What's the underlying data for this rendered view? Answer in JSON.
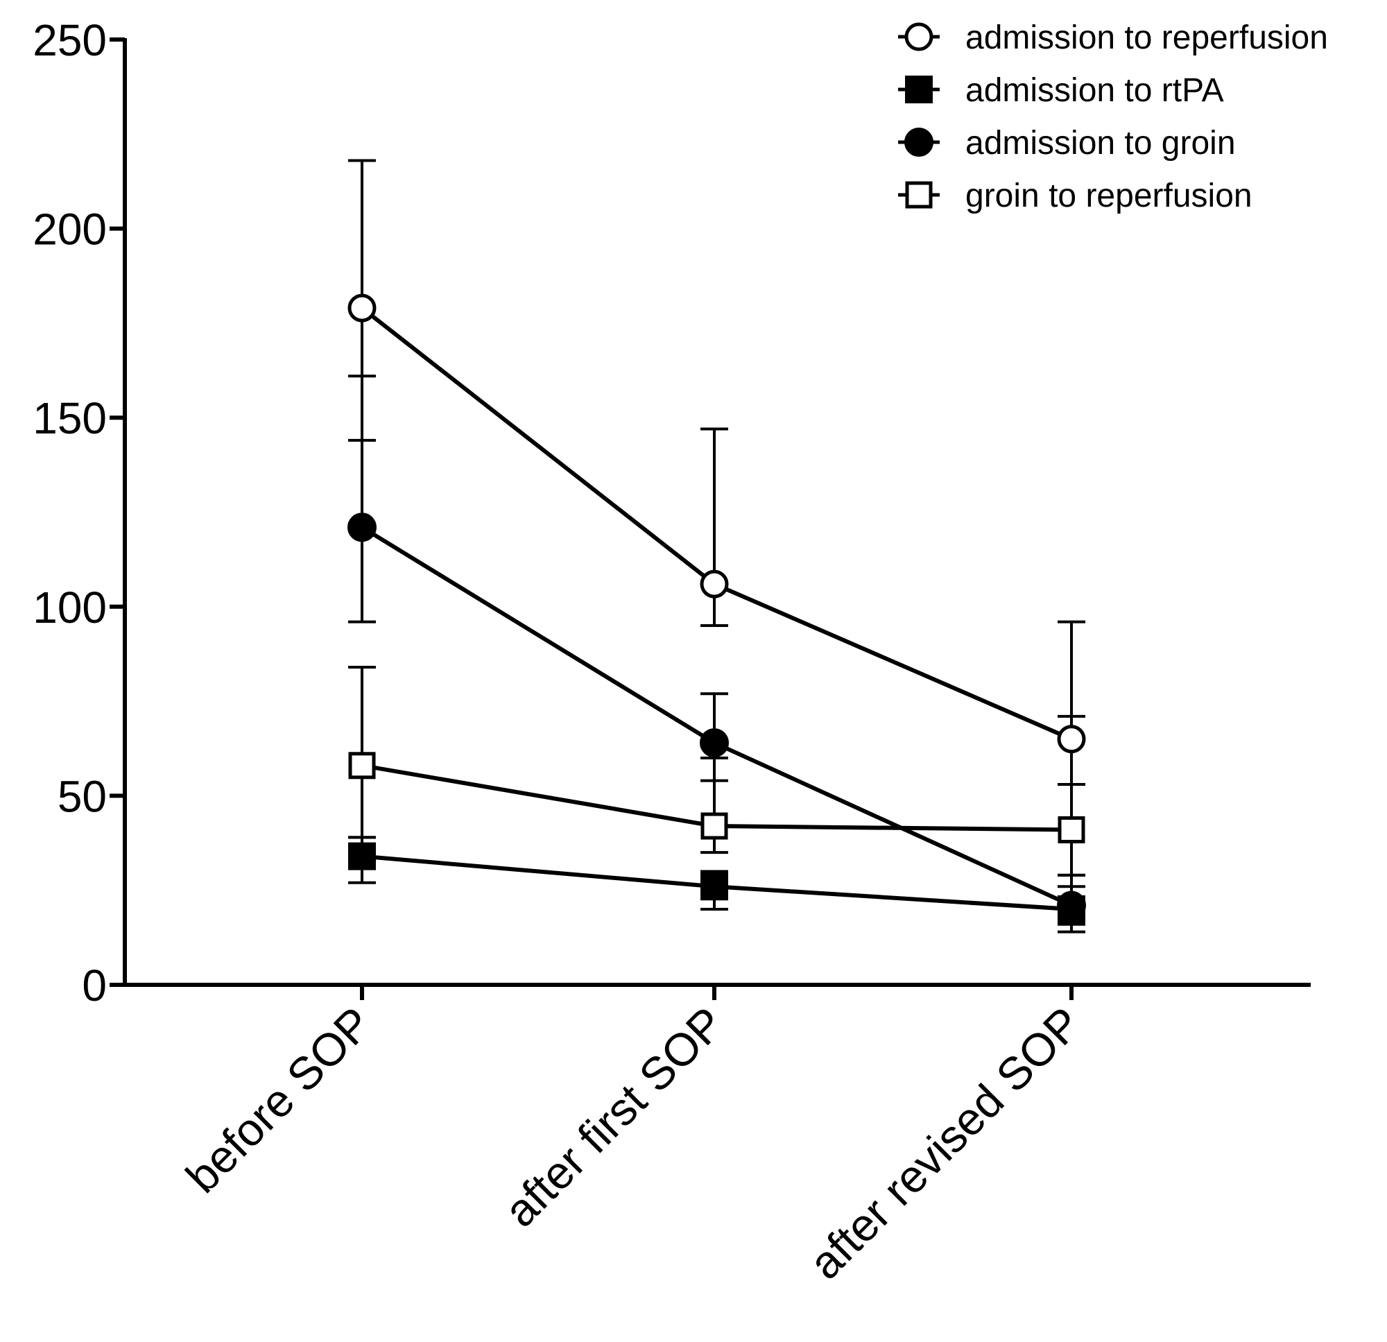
{
  "chart_data": {
    "type": "line",
    "title": "",
    "xlabel": "",
    "ylabel": "",
    "categories": [
      "before SOP",
      "after first SOP",
      "after revised SOP"
    ],
    "ylim": [
      0,
      250
    ],
    "yticks": [
      0,
      50,
      100,
      150,
      200,
      250
    ],
    "grid": false,
    "legend_position": "top-right",
    "series": [
      {
        "name": "admission to reperfusion",
        "marker": "open-circle",
        "values": [
          179,
          106,
          65
        ],
        "err_low": [
          144,
          95,
          53
        ],
        "err_high": [
          218,
          147,
          96
        ]
      },
      {
        "name": "admission to rtPA",
        "marker": "filled-square",
        "values": [
          34,
          26,
          20
        ],
        "err_low": [
          27,
          20,
          14
        ],
        "err_high": [
          39,
          30,
          26
        ]
      },
      {
        "name": "admission to groin",
        "marker": "filled-circle",
        "values": [
          121,
          64,
          21
        ],
        "err_low": [
          96,
          54,
          16
        ],
        "err_high": [
          161,
          77,
          29
        ]
      },
      {
        "name": "groin to reperfusion",
        "marker": "open-square",
        "values": [
          58,
          42,
          41
        ],
        "err_low": [
          39,
          35,
          29
        ],
        "err_high": [
          84,
          60,
          71
        ]
      }
    ]
  }
}
